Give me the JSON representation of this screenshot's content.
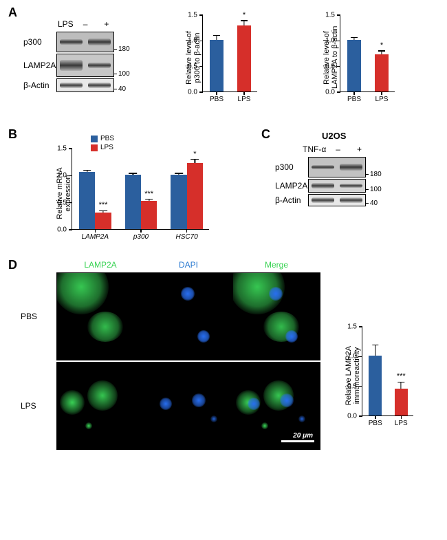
{
  "colors": {
    "pbs": "#2b5f9e",
    "lps": "#d62f2a",
    "green": "#39d353",
    "blue": "#1f6fe0",
    "dapi_label": "#2a7ad1",
    "merge_label": "#39d353"
  },
  "panelA": {
    "label": "A",
    "blot": {
      "header_label": "LPS",
      "lanes": [
        "–",
        "+"
      ],
      "rows": [
        {
          "label": "p300",
          "mw": "180",
          "heights": [
            30,
            30
          ],
          "band_h": [
            8,
            10
          ],
          "bg": "#bdbdbd"
        },
        {
          "label": "LAMP2A",
          "mw": "100",
          "heights": [
            34,
            34
          ],
          "band_h": [
            16,
            8
          ],
          "bg": "#c7c7c7"
        },
        {
          "label": "β-Actin",
          "mw": "40",
          "heights": [
            20,
            20
          ],
          "band_h": [
            8,
            8
          ],
          "bg": "#e8e8e8"
        }
      ]
    },
    "chart1": {
      "y_title_l1": "Relative level of",
      "y_title_l2": "p300 to β-actin",
      "ylim": [
        0,
        1.5
      ],
      "ytick_step": 0.5,
      "categories": [
        "PBS",
        "LPS"
      ],
      "values": [
        1.0,
        1.28
      ],
      "errors": [
        0.09,
        0.1
      ],
      "colors": [
        "#2b5f9e",
        "#d62f2a"
      ],
      "sig": [
        null,
        "*"
      ],
      "bar_width": 0.5
    },
    "chart2": {
      "y_title_l1": "Relative level of",
      "y_title_l2": "LAMP2A to β-actin",
      "ylim": [
        0,
        1.5
      ],
      "ytick_step": 0.5,
      "categories": [
        "PBS",
        "LPS"
      ],
      "values": [
        1.0,
        0.73
      ],
      "errors": [
        0.05,
        0.06
      ],
      "colors": [
        "#2b5f9e",
        "#d62f2a"
      ],
      "sig": [
        null,
        "*"
      ],
      "bar_width": 0.5
    }
  },
  "panelB": {
    "label": "B",
    "chart": {
      "y_title": "Relative mRNA\nexpression",
      "ylim": [
        0,
        1.5
      ],
      "ytick_step": 0.5,
      "groups": [
        "LAMP2A",
        "p300",
        "HSC70"
      ],
      "series": [
        {
          "name": "PBS",
          "color": "#2b5f9e",
          "values": [
            1.05,
            1.0,
            1.0
          ],
          "errors": [
            0.04,
            0.03,
            0.03
          ]
        },
        {
          "name": "LPS",
          "color": "#d62f2a",
          "values": [
            0.31,
            0.52,
            1.22
          ],
          "errors": [
            0.03,
            0.03,
            0.07
          ]
        }
      ],
      "sig_lps": [
        "***",
        "***",
        "*"
      ],
      "bar_width": 0.35,
      "group_gap": 0.3
    }
  },
  "panelC": {
    "label": "C",
    "title": "U2OS",
    "blot": {
      "header_label": "TNF-α",
      "lanes": [
        "–",
        "+"
      ],
      "rows": [
        {
          "label": "p300",
          "mw": "180",
          "h": 30,
          "band_h": [
            6,
            10
          ],
          "bg": "#c2c2c2"
        },
        {
          "label": "LAMP2A",
          "mw": "100",
          "h": 20,
          "band_h": [
            8,
            6
          ],
          "bg": "#d4d4d4"
        },
        {
          "label": "β-Actin",
          "mw": "40",
          "h": 18,
          "band_h": [
            8,
            8
          ],
          "bg": "#e8e8e8"
        }
      ]
    }
  },
  "panelD": {
    "label": "D",
    "columns": [
      "LAMP2A",
      "DAPI",
      "Merge"
    ],
    "column_colors": [
      "#39d353",
      "#2a7ad1",
      "#39d353"
    ],
    "rows": [
      "PBS",
      "LPS"
    ],
    "scale_bar_text": "20 μm",
    "chart": {
      "y_title_l1": "Relative LAMP2A",
      "y_title_l2": "immunoreactivity",
      "ylim": [
        0,
        1.5
      ],
      "ytick_step": 0.5,
      "categories": [
        "PBS",
        "LPS"
      ],
      "values": [
        1.0,
        0.45
      ],
      "errors": [
        0.18,
        0.11
      ],
      "colors": [
        "#2b5f9e",
        "#d62f2a"
      ],
      "sig": [
        null,
        "***"
      ],
      "bar_width": 0.5
    }
  }
}
